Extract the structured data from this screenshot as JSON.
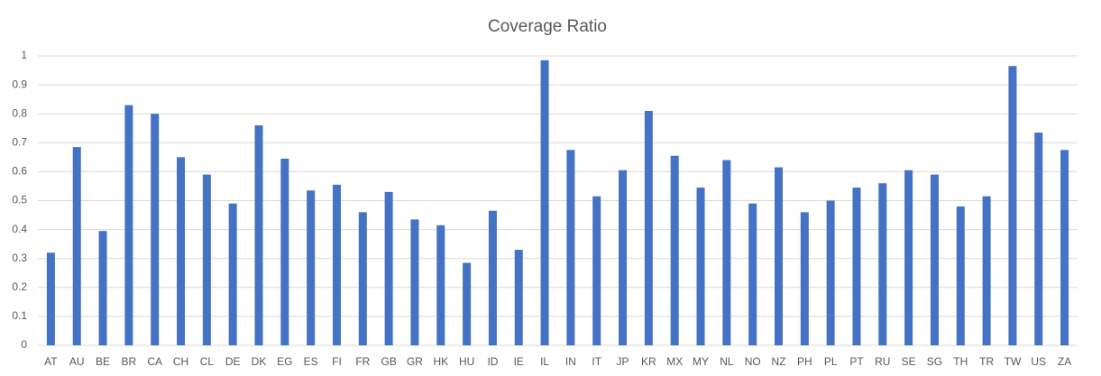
{
  "chart_data": {
    "type": "bar",
    "title": "Coverage Ratio",
    "categories": [
      "AT",
      "AU",
      "BE",
      "BR",
      "CA",
      "CH",
      "CL",
      "DE",
      "DK",
      "EG",
      "ES",
      "FI",
      "FR",
      "GB",
      "GR",
      "HK",
      "HU",
      "ID",
      "IE",
      "IL",
      "IN",
      "IT",
      "JP",
      "KR",
      "MX",
      "MY",
      "NL",
      "NO",
      "NZ",
      "PH",
      "PL",
      "PT",
      "RU",
      "SE",
      "SG",
      "TH",
      "TR",
      "TW",
      "US",
      "ZA"
    ],
    "values": [
      0.32,
      0.685,
      0.395,
      0.83,
      0.8,
      0.65,
      0.59,
      0.49,
      0.76,
      0.645,
      0.535,
      0.555,
      0.46,
      0.53,
      0.435,
      0.415,
      0.285,
      0.465,
      0.33,
      0.985,
      0.675,
      0.515,
      0.605,
      0.81,
      0.655,
      0.545,
      0.64,
      0.49,
      0.615,
      0.46,
      0.5,
      0.545,
      0.56,
      0.605,
      0.59,
      0.48,
      0.515,
      0.965,
      0.735,
      0.675
    ],
    "color": "#4472c4",
    "ylim": [
      0,
      1
    ],
    "yticks": [
      0,
      0.1,
      0.2,
      0.3,
      0.4,
      0.5,
      0.6,
      0.7,
      0.8,
      0.9,
      1
    ],
    "grid": true
  }
}
